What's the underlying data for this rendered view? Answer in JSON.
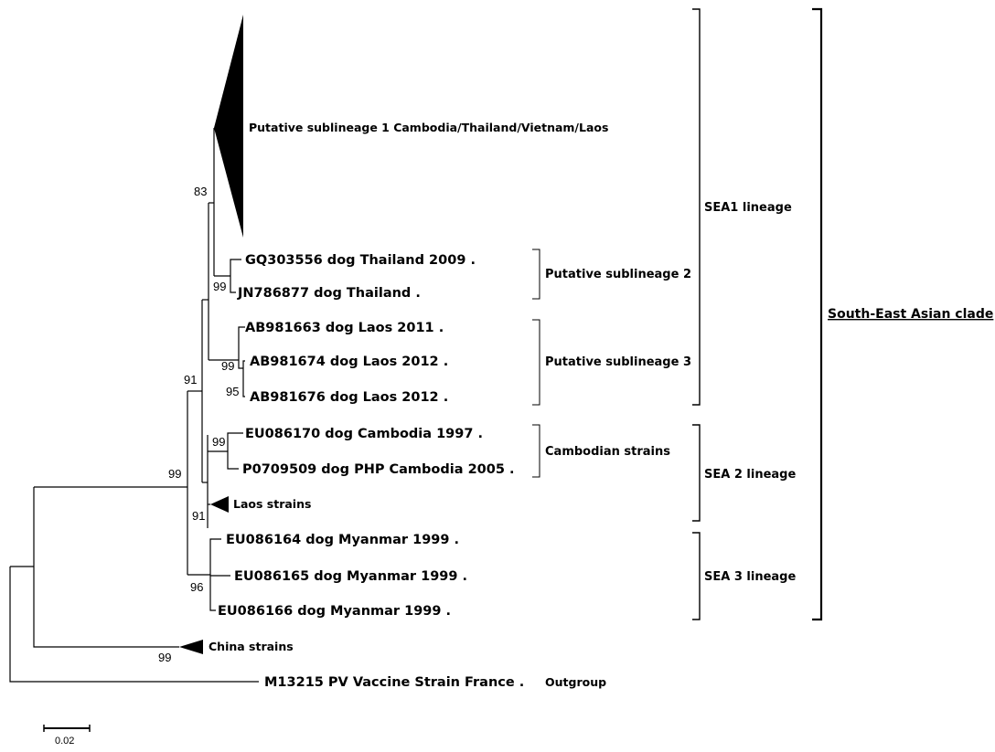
{
  "tree": {
    "taxa": {
      "sub1": "Putative sublineage 1 Cambodia/Thailand/Vietnam/Laos",
      "gq303556": "GQ303556 dog Thailand 2009 .",
      "jn786877": "JN786877 dog Thailand .",
      "ab981663": "AB981663 dog Laos 2011 .",
      "ab981674": "AB981674 dog Laos 2012 .",
      "ab981676": "AB981676 dog Laos 2012 .",
      "eu086170": "EU086170 dog Cambodia 1997 .",
      "p0709509": "P0709509 dog PHP Cambodia 2005 .",
      "laos_strains": "Laos strains",
      "eu086164": "EU086164 dog Myanmar 1999 .",
      "eu086165": "EU086165 dog Myanmar 1999 .",
      "eu086166": "EU086166 dog Myanmar 1999 .",
      "china_strains": "China strains",
      "m13215": "M13215 PV Vaccine Strain France .",
      "outgroup": "Outgroup"
    },
    "bootstrap": {
      "n83": "83",
      "n99_sub2": "99",
      "n99_sub3": "99",
      "n95": "95",
      "n91_sea1": "91",
      "n99_camb": "99",
      "n91_laos": "91",
      "n99_root": "99",
      "n96": "96",
      "n99_china": "99"
    },
    "groups": {
      "sub2": "Putative sublineage 2",
      "sub3": "Putative sublineage 3",
      "cambodian": "Cambodian strains",
      "sea1": "SEA1 lineage",
      "sea2": "SEA 2 lineage",
      "sea3": "SEA 3 lineage",
      "clade": "South-East Asian clade"
    },
    "scale_bar": "0.02"
  }
}
